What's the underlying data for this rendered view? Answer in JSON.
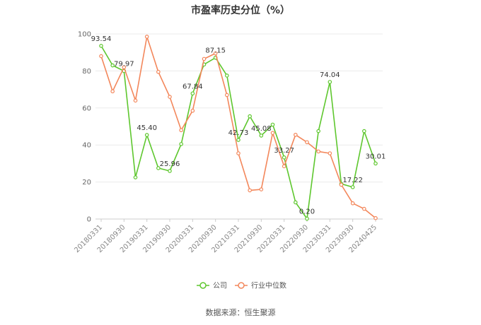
{
  "chart_data": {
    "type": "line",
    "title": "市盈率历史分位（%）",
    "ylim": [
      0,
      100
    ],
    "yticks": [
      0,
      20,
      40,
      60,
      80,
      100
    ],
    "grid": true,
    "legend_position": "bottom",
    "source_note": "数据来源：恒生聚源",
    "x_tick_labels": [
      "20180331",
      "20180930",
      "20190331",
      "20190930",
      "20200331",
      "20200930",
      "20210331",
      "20210930",
      "20220331",
      "20220930",
      "20230331",
      "20230930",
      "20240425"
    ],
    "series": [
      {
        "name": "公司",
        "color": "#5ec72e",
        "values": [
          93.54,
          83.0,
          79.97,
          22.5,
          45.4,
          27.5,
          25.96,
          40.5,
          67.84,
          83.5,
          87.15,
          77.5,
          42.73,
          55.5,
          45.08,
          51.0,
          33.27,
          9.0,
          0.2,
          47.5,
          74.04,
          19.0,
          17.22,
          47.5,
          30.01
        ],
        "labels": [
          "93.54",
          "",
          "79.97",
          "",
          "45.40",
          "",
          "25.96",
          "",
          "67.84",
          "",
          "87.15",
          "",
          "42.73",
          "",
          "45.08",
          "",
          "33.27",
          "",
          "0.20",
          "",
          "74.04",
          "",
          "17.22",
          "",
          "30.01"
        ]
      },
      {
        "name": "行业中位数",
        "color": "#f3875b",
        "values": [
          88.0,
          69.0,
          82.0,
          64.0,
          98.5,
          79.5,
          66.0,
          48.0,
          58.5,
          86.5,
          89.5,
          67.0,
          35.5,
          15.5,
          16.0,
          46.5,
          28.5,
          45.5,
          41.5,
          36.5,
          35.5,
          18.5,
          8.5,
          5.5,
          0.5
        ]
      }
    ]
  }
}
